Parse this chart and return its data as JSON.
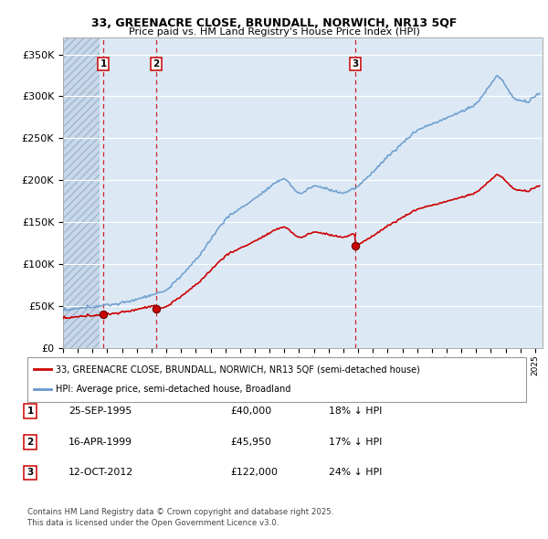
{
  "title_line1": "33, GREENACRE CLOSE, BRUNDALL, NORWICH, NR13 5QF",
  "title_line2": "Price paid vs. HM Land Registry's House Price Index (HPI)",
  "background_color": "#ffffff",
  "plot_bg_color": "#dce9f5",
  "hatch_bg_color": "#c8d8ea",
  "grid_color": "#ffffff",
  "sale_dates": [
    1995.73,
    1999.29,
    2012.79
  ],
  "sale_prices": [
    40000,
    45950,
    122000
  ],
  "sale_labels": [
    "1",
    "2",
    "3"
  ],
  "legend_entries": [
    "33, GREENACRE CLOSE, BRUNDALL, NORWICH, NR13 5QF (semi-detached house)",
    "HPI: Average price, semi-detached house, Broadland"
  ],
  "table_rows": [
    [
      "1",
      "25-SEP-1995",
      "£40,000",
      "18% ↓ HPI"
    ],
    [
      "2",
      "16-APR-1999",
      "£45,950",
      "17% ↓ HPI"
    ],
    [
      "3",
      "12-OCT-2012",
      "£122,000",
      "24% ↓ HPI"
    ]
  ],
  "footer": "Contains HM Land Registry data © Crown copyright and database right 2025.\nThis data is licensed under the Open Government Licence v3.0.",
  "ylim": [
    0,
    370000
  ],
  "xlim_start": 1993.0,
  "xlim_end": 2025.5,
  "yticks": [
    0,
    50000,
    100000,
    150000,
    200000,
    250000,
    300000,
    350000
  ],
  "ytick_labels": [
    "£0",
    "£50K",
    "£100K",
    "£150K",
    "£200K",
    "£250K",
    "£300K",
    "£350K"
  ],
  "property_line_color": "#cc0000",
  "hpi_line_color": "#6699cc",
  "sale_marker_color": "#cc0000",
  "sale_marker_edge": "#660000",
  "vline_color": "#cc0000",
  "label_box_color": "#cc0000",
  "hatch_end_year": 1995.5
}
